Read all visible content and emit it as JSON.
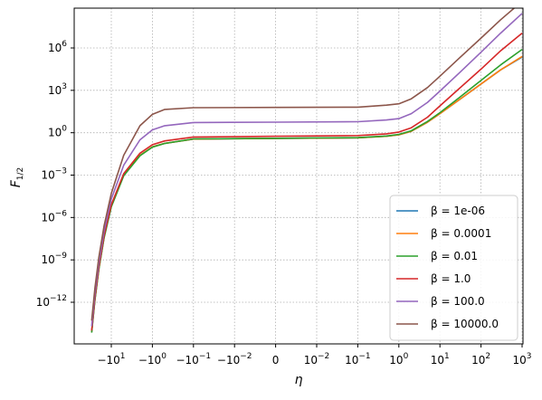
{
  "chart_data": {
    "type": "line",
    "title": "",
    "xlabel": "η",
    "ylabel": "F",
    "ylabel_sub": "1/2",
    "xscale": "symlog",
    "yscale": "log",
    "grid": true,
    "legend_placement": "lower-right",
    "x_ticks": [
      {
        "pos": -10,
        "base": "−10",
        "exp": "1"
      },
      {
        "pos": -1,
        "base": "−10",
        "exp": "0"
      },
      {
        "pos": -0.1,
        "base": "−10",
        "exp": "−1"
      },
      {
        "pos": -0.01,
        "base": "−10",
        "exp": "−2"
      },
      {
        "pos": 0,
        "base": "0",
        "exp": ""
      },
      {
        "pos": 0.01,
        "base": "10",
        "exp": "−2"
      },
      {
        "pos": 0.1,
        "base": "10",
        "exp": "−1"
      },
      {
        "pos": 1,
        "base": "10",
        "exp": "0"
      },
      {
        "pos": 10,
        "base": "10",
        "exp": "1"
      },
      {
        "pos": 100,
        "base": "10",
        "exp": "2"
      },
      {
        "pos": 1000,
        "base": "10",
        "exp": "3"
      }
    ],
    "y_ticks": [
      {
        "exp": -12,
        "base": "10",
        "label": "−12"
      },
      {
        "exp": -9,
        "base": "10",
        "label": "−9"
      },
      {
        "exp": -6,
        "base": "10",
        "label": "−6"
      },
      {
        "exp": -3,
        "base": "10",
        "label": "−3"
      },
      {
        "exp": 0,
        "base": "10",
        "label": "0"
      },
      {
        "exp": 3,
        "base": "10",
        "label": "3"
      },
      {
        "exp": 6,
        "base": "10",
        "label": "6"
      }
    ],
    "series": [
      {
        "name": "β = 1e-06",
        "color": "#1f77b4",
        "points": [
          [
            -30,
            -14.1
          ],
          [
            -25,
            -11.8
          ],
          [
            -20,
            -9.6
          ],
          [
            -15,
            -7.4
          ],
          [
            -10,
            -5.2
          ],
          [
            -5,
            -3.0
          ],
          [
            -2,
            -1.6
          ],
          [
            -1,
            -1.0
          ],
          [
            -0.5,
            -0.75
          ],
          [
            -0.1,
            -0.45
          ],
          [
            0,
            -0.4
          ],
          [
            0.1,
            -0.36
          ],
          [
            0.5,
            -0.25
          ],
          [
            1,
            -0.15
          ],
          [
            2,
            0.1
          ],
          [
            5,
            0.75
          ],
          [
            10,
            1.35
          ],
          [
            30,
            2.35
          ],
          [
            100,
            3.45
          ],
          [
            300,
            4.45
          ],
          [
            1000,
            5.35
          ]
        ]
      },
      {
        "name": "β = 0.0001",
        "color": "#ff7f0e",
        "points": [
          [
            -30,
            -14.1
          ],
          [
            -25,
            -11.8
          ],
          [
            -20,
            -9.6
          ],
          [
            -15,
            -7.4
          ],
          [
            -10,
            -5.2
          ],
          [
            -5,
            -3.0
          ],
          [
            -2,
            -1.6
          ],
          [
            -1,
            -1.0
          ],
          [
            -0.5,
            -0.75
          ],
          [
            -0.1,
            -0.45
          ],
          [
            0,
            -0.4
          ],
          [
            0.1,
            -0.36
          ],
          [
            0.5,
            -0.25
          ],
          [
            1,
            -0.15
          ],
          [
            2,
            0.1
          ],
          [
            5,
            0.75
          ],
          [
            10,
            1.35
          ],
          [
            30,
            2.35
          ],
          [
            100,
            3.45
          ],
          [
            300,
            4.45
          ],
          [
            1000,
            5.4
          ]
        ]
      },
      {
        "name": "β = 0.01",
        "color": "#2ca02c",
        "points": [
          [
            -30,
            -14.15
          ],
          [
            -25,
            -11.85
          ],
          [
            -20,
            -9.65
          ],
          [
            -15,
            -7.45
          ],
          [
            -10,
            -5.25
          ],
          [
            -5,
            -3.05
          ],
          [
            -2,
            -1.63
          ],
          [
            -1,
            -1.02
          ],
          [
            -0.5,
            -0.76
          ],
          [
            -0.1,
            -0.44
          ],
          [
            0,
            -0.39
          ],
          [
            0.1,
            -0.35
          ],
          [
            0.5,
            -0.23
          ],
          [
            1,
            -0.12
          ],
          [
            2,
            0.14
          ],
          [
            5,
            0.8
          ],
          [
            10,
            1.42
          ],
          [
            30,
            2.5
          ],
          [
            100,
            3.7
          ],
          [
            300,
            4.8
          ],
          [
            1000,
            5.9
          ]
        ]
      },
      {
        "name": "β = 1.0",
        "color": "#d62728",
        "points": [
          [
            -30,
            -14.0
          ],
          [
            -25,
            -11.7
          ],
          [
            -20,
            -9.5
          ],
          [
            -15,
            -7.3
          ],
          [
            -10,
            -5.1
          ],
          [
            -5,
            -2.9
          ],
          [
            -2,
            -1.45
          ],
          [
            -1,
            -0.85
          ],
          [
            -0.5,
            -0.58
          ],
          [
            -0.1,
            -0.3
          ],
          [
            0,
            -0.25
          ],
          [
            0.1,
            -0.2
          ],
          [
            0.5,
            -0.08
          ],
          [
            1,
            0.05
          ],
          [
            2,
            0.35
          ],
          [
            5,
            1.1
          ],
          [
            10,
            1.9
          ],
          [
            30,
            3.15
          ],
          [
            100,
            4.5
          ],
          [
            300,
            5.8
          ],
          [
            1000,
            7.05
          ]
        ]
      },
      {
        "name": "β = 100.0",
        "color": "#9467bd",
        "points": [
          [
            -30,
            -13.7
          ],
          [
            -25,
            -11.4
          ],
          [
            -20,
            -9.2
          ],
          [
            -15,
            -7.0
          ],
          [
            -10,
            -4.7
          ],
          [
            -5,
            -2.3
          ],
          [
            -2,
            -0.5
          ],
          [
            -1,
            0.2
          ],
          [
            -0.5,
            0.5
          ],
          [
            -0.1,
            0.72
          ],
          [
            0,
            0.75
          ],
          [
            0.1,
            0.78
          ],
          [
            0.5,
            0.9
          ],
          [
            1,
            1.0
          ],
          [
            2,
            1.35
          ],
          [
            5,
            2.15
          ],
          [
            10,
            2.95
          ],
          [
            30,
            4.25
          ],
          [
            100,
            5.7
          ],
          [
            300,
            7.05
          ],
          [
            1000,
            8.45
          ]
        ]
      },
      {
        "name": "β = 10000.0",
        "color": "#8c564b",
        "points": [
          [
            -30,
            -13.3
          ],
          [
            -25,
            -11.0
          ],
          [
            -20,
            -8.8
          ],
          [
            -15,
            -6.6
          ],
          [
            -10,
            -4.3
          ],
          [
            -5,
            -1.6
          ],
          [
            -2,
            0.5
          ],
          [
            -1,
            1.3
          ],
          [
            -0.5,
            1.65
          ],
          [
            -0.1,
            1.77
          ],
          [
            0,
            1.79
          ],
          [
            0.1,
            1.81
          ],
          [
            0.5,
            1.95
          ],
          [
            1,
            2.05
          ],
          [
            2,
            2.4
          ],
          [
            5,
            3.2
          ],
          [
            10,
            4.0
          ],
          [
            30,
            5.3
          ],
          [
            100,
            6.7
          ],
          [
            300,
            8.0
          ],
          [
            1000,
            9.3
          ]
        ]
      }
    ]
  }
}
